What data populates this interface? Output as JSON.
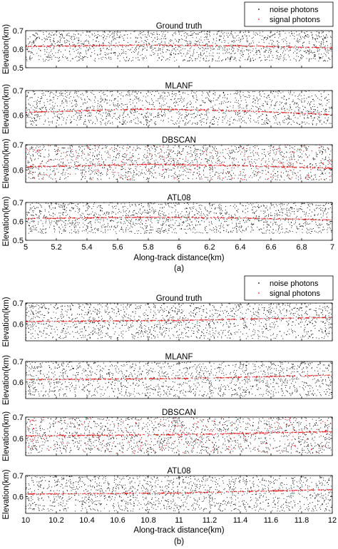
{
  "chart_data": [
    {
      "figure_label": "(a)",
      "type": "scatter",
      "xlabel": "Along-track distance(km)",
      "xlim": [
        5,
        7
      ],
      "xticks": [
        "5",
        "5.2",
        "5.4",
        "5.6",
        "5.8",
        "6",
        "6.2",
        "6.4",
        "6.6",
        "6.8",
        "7"
      ],
      "legend": {
        "placement": "top-right",
        "entries": [
          {
            "name": "noise photons",
            "color": "#000000"
          },
          {
            "name": "signal photons",
            "color": "#e41a1c"
          }
        ]
      },
      "panels": [
        {
          "title": "Ground truth",
          "ylabel": "Elevation(km)",
          "ylim": [
            0.5,
            0.7
          ],
          "yticks": [
            "0.5",
            "0.6",
            "0.7"
          ],
          "signal_line": [
            [
              5,
              0.615
            ],
            [
              5.8,
              0.622
            ],
            [
              6.4,
              0.618
            ],
            [
              7,
              0.607
            ]
          ],
          "noise_range": [
            0.535,
            0.7
          ],
          "noise_count": 1500,
          "signal_scatter": 0
        },
        {
          "title": "MLANF",
          "ylabel": "Elevation(km)",
          "ylim": [
            0.55,
            0.7
          ],
          "yticks": [
            "0.6",
            "0.7"
          ],
          "signal_line": [
            [
              5,
              0.612
            ],
            [
              5.8,
              0.625
            ],
            [
              6.4,
              0.618
            ],
            [
              7,
              0.603
            ]
          ],
          "noise_range": [
            0.56,
            0.7
          ],
          "noise_count": 1500,
          "signal_scatter": 0
        },
        {
          "title": "DBSCAN",
          "ylabel": "Elevation(km)",
          "ylim": [
            0.55,
            0.7
          ],
          "yticks": [
            "0.6",
            "0.7"
          ],
          "signal_line": [
            [
              5,
              0.612
            ],
            [
              5.8,
              0.622
            ],
            [
              6.4,
              0.617
            ],
            [
              7,
              0.607
            ]
          ],
          "noise_range": [
            0.56,
            0.7
          ],
          "noise_count": 1400,
          "signal_scatter": 260
        },
        {
          "title": "ATL08",
          "ylabel": "Elevation(km)",
          "ylim": [
            0.5,
            0.7
          ],
          "yticks": [
            "0.5",
            "0.6",
            "0.7"
          ],
          "signal_line": [
            [
              5,
              0.615
            ],
            [
              5.8,
              0.622
            ],
            [
              6.4,
              0.618
            ],
            [
              7,
              0.607
            ]
          ],
          "noise_range": [
            0.535,
            0.7
          ],
          "noise_count": 1500,
          "signal_scatter": 0
        }
      ]
    },
    {
      "figure_label": "(b)",
      "type": "scatter",
      "xlabel": "Along-track distance(km)",
      "xlim": [
        10,
        12
      ],
      "xticks": [
        "10",
        "10.2",
        "10.4",
        "10.6",
        "10.8",
        "11",
        "11.2",
        "11.4",
        "11.6",
        "11.8",
        "12"
      ],
      "legend": {
        "placement": "top-right",
        "entries": [
          {
            "name": "noise photons",
            "color": "#000000"
          },
          {
            "name": "signal photons",
            "color": "#e41a1c"
          }
        ]
      },
      "panels": [
        {
          "title": "Ground truth",
          "ylabel": "Elevation(km)",
          "ylim": [
            0.52,
            0.7
          ],
          "yticks": [
            "0.6",
            "0.7"
          ],
          "signal_line": [
            [
              10,
              0.612
            ],
            [
              11,
              0.617
            ],
            [
              12,
              0.632
            ]
          ],
          "noise_range": [
            0.53,
            0.7
          ],
          "noise_count": 1500,
          "signal_scatter": 0
        },
        {
          "title": "MLANF",
          "ylabel": "Elevation(km)",
          "ylim": [
            0.52,
            0.7
          ],
          "yticks": [
            "0.6",
            "0.7"
          ],
          "signal_line": [
            [
              10,
              0.612
            ],
            [
              11,
              0.617
            ],
            [
              12,
              0.634
            ]
          ],
          "noise_range": [
            0.53,
            0.7
          ],
          "noise_count": 1500,
          "signal_scatter": 0
        },
        {
          "title": "DBSCAN",
          "ylabel": "Elevation(km)",
          "ylim": [
            0.52,
            0.7
          ],
          "yticks": [
            "0.6",
            "0.7"
          ],
          "signal_line": [
            [
              10,
              0.612
            ],
            [
              11,
              0.618
            ],
            [
              12,
              0.632
            ]
          ],
          "noise_range": [
            0.53,
            0.7
          ],
          "noise_count": 1400,
          "signal_scatter": 260
        },
        {
          "title": "ATL08",
          "ylabel": "Elevation(km)",
          "ylim": [
            0.52,
            0.7
          ],
          "yticks": [
            "0.6",
            "0.7"
          ],
          "signal_line": [
            [
              10,
              0.612
            ],
            [
              11,
              0.617
            ],
            [
              12,
              0.633
            ]
          ],
          "noise_range": [
            0.53,
            0.7
          ],
          "noise_count": 1500,
          "signal_scatter": 0
        }
      ]
    }
  ]
}
